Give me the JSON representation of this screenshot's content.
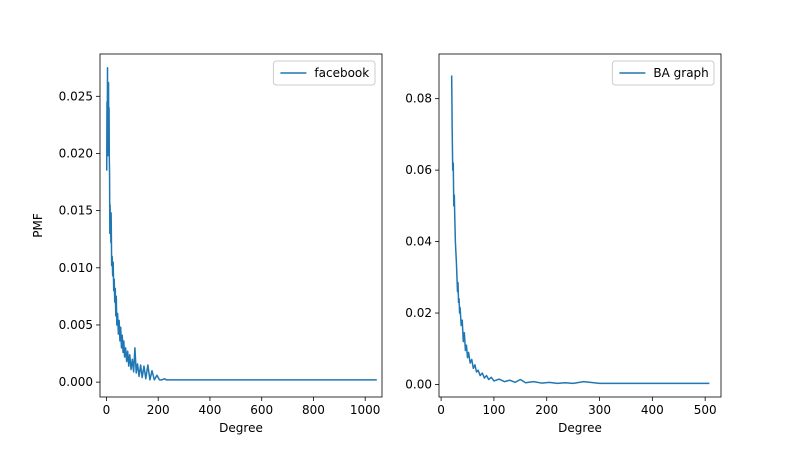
{
  "chart_data": [
    {
      "type": "line",
      "xlabel": "Degree",
      "ylabel": "PMF",
      "xlim": [
        -25,
        1065
      ],
      "ylim": [
        -0.0013,
        0.0287
      ],
      "xticks": [
        0,
        200,
        400,
        600,
        800,
        1000
      ],
      "yticks": [
        0.0,
        0.005,
        0.01,
        0.015,
        0.02,
        0.025
      ],
      "xtick_labels": [
        "0",
        "200",
        "400",
        "600",
        "800",
        "1000"
      ],
      "ytick_labels": [
        "0.000",
        "0.005",
        "0.010",
        "0.015",
        "0.020",
        "0.025"
      ],
      "legend_position": "top-right",
      "series": [
        {
          "name": "facebook",
          "color": "#1f77b4",
          "x": [
            1,
            2,
            3,
            4,
            5,
            6,
            7,
            8,
            9,
            10,
            11,
            12,
            13,
            14,
            15,
            16,
            17,
            18,
            19,
            20,
            22,
            24,
            26,
            28,
            30,
            32,
            34,
            36,
            38,
            40,
            43,
            46,
            49,
            52,
            55,
            58,
            61,
            64,
            67,
            70,
            74,
            78,
            82,
            86,
            90,
            95,
            100,
            105,
            110,
            115,
            120,
            126,
            132,
            138,
            145,
            152,
            160,
            168,
            176,
            185,
            195,
            205,
            215,
            225,
            230,
            240,
            300,
            400,
            500,
            600,
            700,
            800,
            900,
            1000,
            1045
          ],
          "y": [
            0.0185,
            0.0245,
            0.021,
            0.0275,
            0.0198,
            0.0255,
            0.0228,
            0.0262,
            0.02,
            0.024,
            0.0196,
            0.0182,
            0.013,
            0.0155,
            0.0135,
            0.0145,
            0.0122,
            0.0148,
            0.0128,
            0.0102,
            0.011,
            0.0093,
            0.0105,
            0.008,
            0.009,
            0.007,
            0.0082,
            0.0058,
            0.0075,
            0.005,
            0.006,
            0.0042,
            0.0054,
            0.0036,
            0.0048,
            0.003,
            0.0041,
            0.0026,
            0.0036,
            0.0022,
            0.003,
            0.0018,
            0.0027,
            0.0014,
            0.0024,
            0.0011,
            0.002,
            0.0009,
            0.003,
            0.0008,
            0.0016,
            0.0005,
            0.0015,
            0.0004,
            0.0014,
            0.0003,
            0.0015,
            0.0002,
            0.001,
            0.0002,
            0.0006,
            0.0002,
            0.0002,
            0.0003,
            0.0002,
            0.0002,
            0.0002,
            0.0002,
            0.0002,
            0.0002,
            0.0002,
            0.0002,
            0.0002,
            0.0002,
            0.0002
          ]
        }
      ]
    },
    {
      "type": "line",
      "xlabel": "Degree",
      "ylabel": "",
      "xlim": [
        -4,
        530
      ],
      "ylim": [
        -0.0035,
        0.0925
      ],
      "xticks": [
        0,
        100,
        200,
        300,
        400,
        500
      ],
      "yticks": [
        0.0,
        0.02,
        0.04,
        0.06,
        0.08
      ],
      "xtick_labels": [
        "0",
        "100",
        "200",
        "300",
        "400",
        "500"
      ],
      "ytick_labels": [
        "0.00",
        "0.02",
        "0.04",
        "0.06",
        "0.08"
      ],
      "legend_position": "top-right",
      "series": [
        {
          "name": "BA graph",
          "color": "#1f77b4",
          "x": [
            20,
            21,
            22,
            23,
            24,
            25,
            26,
            27,
            28,
            29,
            30,
            31,
            32,
            33,
            34,
            35,
            36,
            38,
            40,
            42,
            44,
            46,
            48,
            50,
            52,
            55,
            58,
            61,
            64,
            67,
            70,
            74,
            78,
            82,
            86,
            90,
            95,
            100,
            110,
            120,
            130,
            140,
            150,
            160,
            175,
            190,
            205,
            220,
            235,
            250,
            270,
            300,
            350,
            400,
            450,
            508
          ],
          "y": [
            0.0865,
            0.071,
            0.06,
            0.062,
            0.05,
            0.053,
            0.046,
            0.04,
            0.037,
            0.034,
            0.03,
            0.026,
            0.0285,
            0.023,
            0.024,
            0.02,
            0.0215,
            0.0165,
            0.018,
            0.012,
            0.0145,
            0.0095,
            0.011,
            0.0075,
            0.009,
            0.006,
            0.007,
            0.0045,
            0.0055,
            0.0035,
            0.004,
            0.0025,
            0.0032,
            0.0018,
            0.0025,
            0.0014,
            0.002,
            0.001,
            0.0015,
            0.0008,
            0.0012,
            0.0006,
            0.0014,
            0.0005,
            0.0008,
            0.0004,
            0.0006,
            0.0003,
            0.0005,
            0.0003,
            0.0008,
            0.0003,
            0.0003,
            0.0003,
            0.0003,
            0.0003
          ]
        }
      ]
    }
  ]
}
